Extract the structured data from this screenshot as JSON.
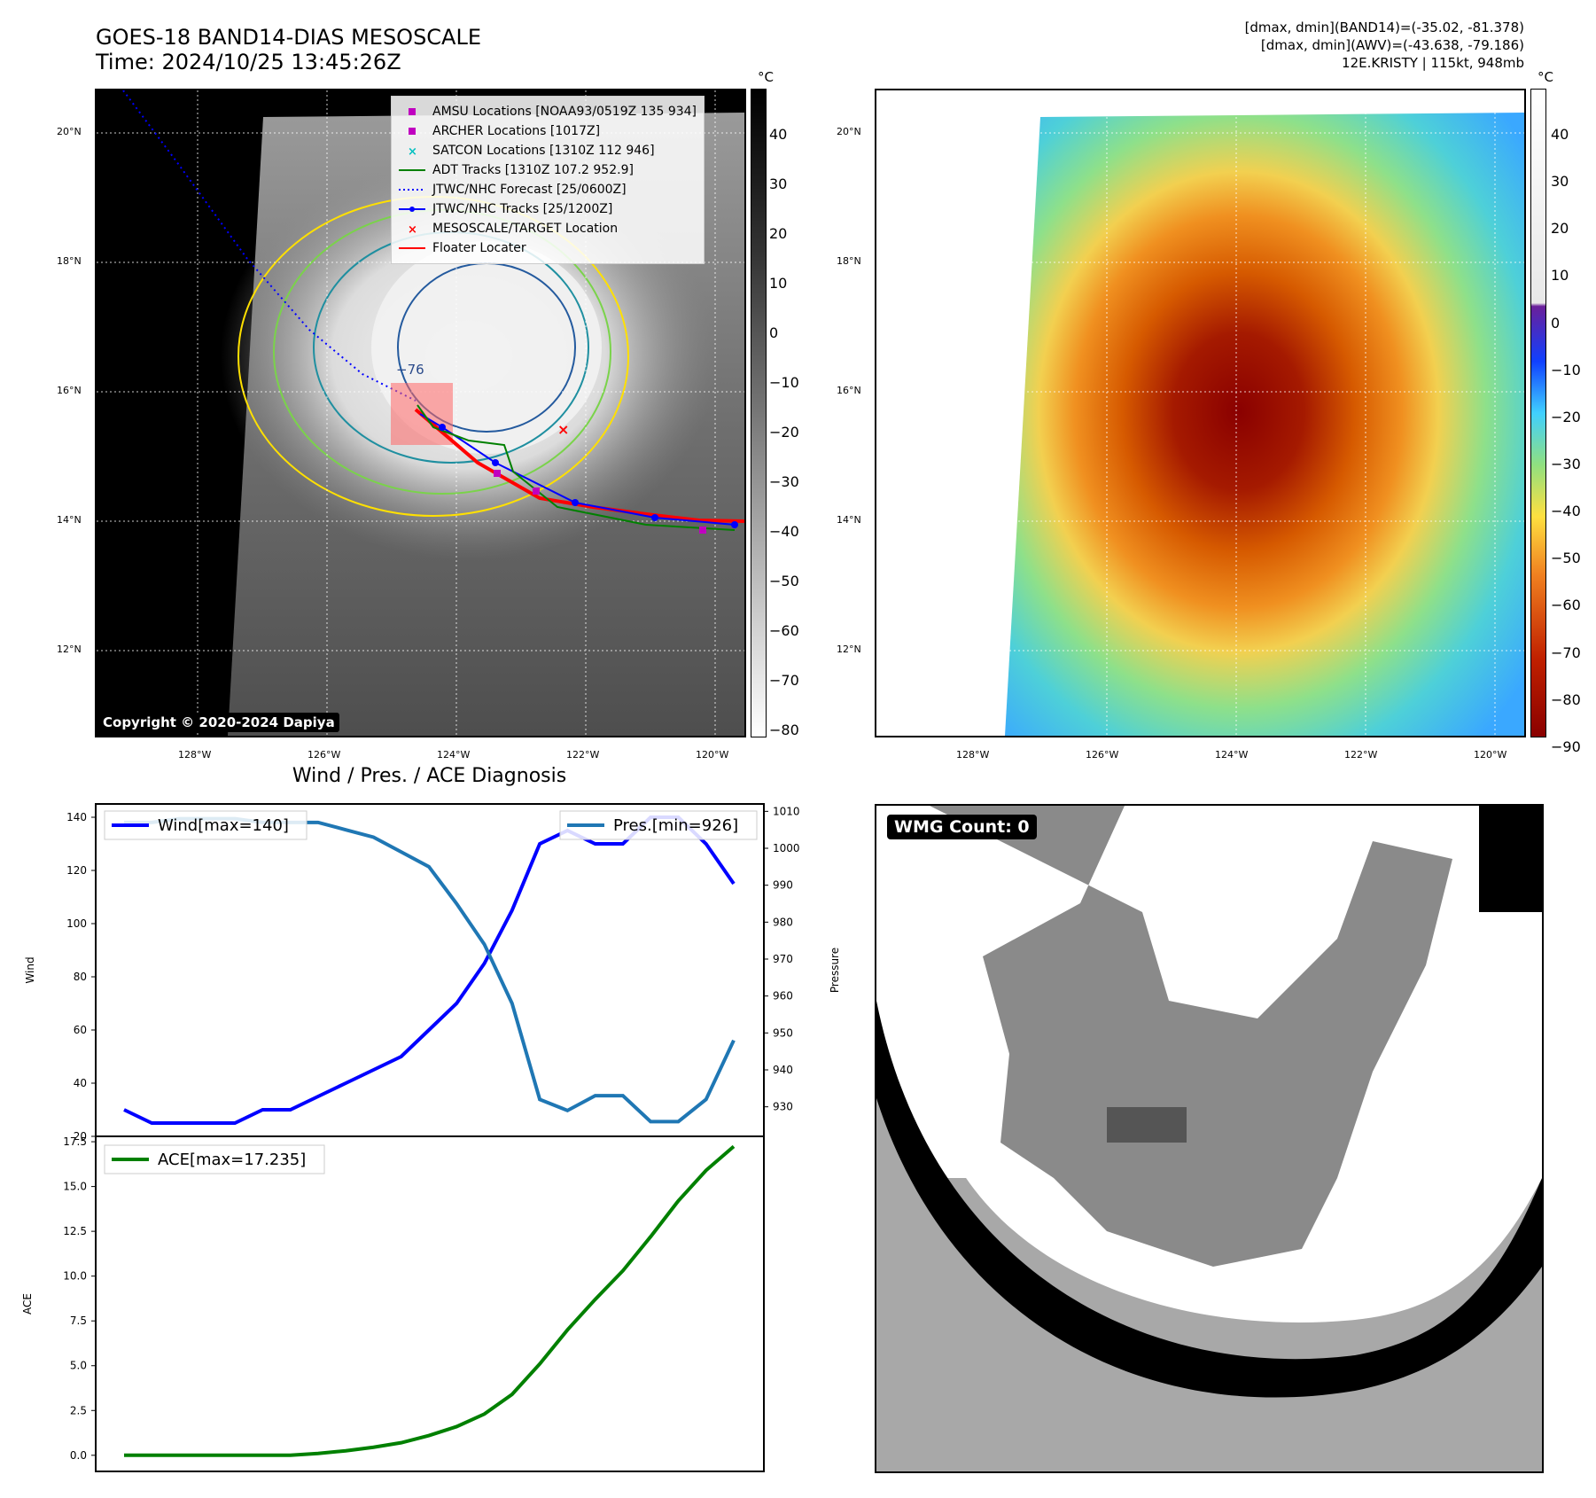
{
  "header": {
    "title_line1": "GOES-18 BAND14-DIAS MESOSCALE",
    "title_line2": "Time: 2024/10/25 13:45:26Z",
    "info_line1": "[dmax, dmin](BAND14)=(-35.02, -81.378)",
    "info_line2": "[dmax, dmin](AWV)=(-43.638, -79.186)",
    "info_line3": "12E.KRISTY | 115kt, 948mb"
  },
  "map_axes": {
    "lat_labels": [
      "20°N",
      "18°N",
      "16°N",
      "14°N",
      "12°N"
    ],
    "lon_labels": [
      "128°W",
      "126°W",
      "124°W",
      "122°W",
      "120°W"
    ]
  },
  "left_map": {
    "contour_label": "−76",
    "copyright": "Copyright © 2020-2024 Dapiya",
    "colorbar_unit": "°C",
    "colorbar_ticks": [
      "40",
      "30",
      "20",
      "10",
      "0",
      "−10",
      "−20",
      "−30",
      "−40",
      "−50",
      "−60",
      "−70",
      "−80"
    ],
    "legend": [
      {
        "label": "AMSU Locations [NOAA93/0519Z 135 934]",
        "symbol": "square",
        "color": "#c000c0"
      },
      {
        "label": "ARCHER Locations [1017Z]",
        "symbol": "square",
        "color": "#c000c0"
      },
      {
        "label": "SATCON Locations [1310Z 112 946]",
        "symbol": "x",
        "color": "#00c0c0"
      },
      {
        "label": "ADT Tracks [1310Z 107.2 952.9]",
        "symbol": "line",
        "color": "#008000"
      },
      {
        "label": "JTWC/NHC Forecast [25/0600Z]",
        "symbol": "dotted",
        "color": "#0000ff"
      },
      {
        "label": "JTWC/NHC Tracks [25/1200Z]",
        "symbol": "dotline",
        "color": "#0000ff"
      },
      {
        "label": "MESOSCALE/TARGET Location",
        "symbol": "x",
        "color": "#ff0000"
      },
      {
        "label": "Floater Locater",
        "symbol": "line",
        "color": "#ff0000"
      }
    ]
  },
  "right_map": {
    "colorbar_unit": "°C",
    "colorbar_ticks": [
      "40",
      "30",
      "20",
      "10",
      "0",
      "−10",
      "−20",
      "−30",
      "−40",
      "−50",
      "−60",
      "−70",
      "−80",
      "−90"
    ]
  },
  "wmg": {
    "label": "WMG Count: 0"
  },
  "chart_data": [
    {
      "type": "line",
      "title": "Wind / Pres. / ACE Diagnosis",
      "x": [
        0,
        1,
        2,
        3,
        4,
        5,
        6,
        7,
        8,
        9,
        10,
        11,
        12,
        13,
        14,
        15,
        16,
        17,
        18,
        19,
        20,
        21,
        22
      ],
      "series": [
        {
          "name": "Wind[max=140]",
          "axis": "left",
          "color": "#0000ff",
          "values": [
            30,
            25,
            25,
            25,
            25,
            30,
            30,
            35,
            40,
            45,
            50,
            60,
            70,
            85,
            105,
            130,
            135,
            130,
            130,
            140,
            140,
            130,
            115
          ]
        },
        {
          "name": "Pres.[min=926]",
          "axis": "right",
          "color": "#1f77b4",
          "values": [
            1007,
            1007,
            1008,
            1008,
            1008,
            1007,
            1007,
            1007,
            1005,
            1003,
            999,
            995,
            985,
            974,
            958,
            932,
            929,
            933,
            933,
            926,
            926,
            932,
            948
          ]
        }
      ],
      "ylabel": "Wind",
      "ylim": [
        20,
        145
      ],
      "yticks": [
        20,
        40,
        60,
        80,
        100,
        120,
        140
      ],
      "y2label": "Pressure",
      "y2lim": [
        922,
        1012
      ],
      "y2ticks": [
        930,
        940,
        950,
        960,
        970,
        980,
        990,
        1000,
        1010
      ],
      "legend_wind": "Wind[max=140]",
      "legend_pres": "Pres.[min=926]"
    },
    {
      "type": "line",
      "title": "",
      "x": [
        0,
        1,
        2,
        3,
        4,
        5,
        6,
        7,
        8,
        9,
        10,
        11,
        12,
        13,
        14,
        15,
        16,
        17,
        18,
        19,
        20,
        21,
        22
      ],
      "series": [
        {
          "name": "ACE[max=17.235]",
          "color": "#008000",
          "values": [
            0,
            0,
            0,
            0,
            0,
            0,
            0,
            0.1,
            0.25,
            0.45,
            0.7,
            1.1,
            1.6,
            2.3,
            3.4,
            5.1,
            7.0,
            8.7,
            10.3,
            12.2,
            14.2,
            15.9,
            17.235
          ]
        }
      ],
      "ylabel": "ACE",
      "ylim": [
        -0.9,
        17.8
      ],
      "yticks": [
        "0.0",
        "2.5",
        "5.0",
        "7.5",
        "10.0",
        "12.5",
        "15.0",
        "17.5"
      ],
      "legend_ace": "ACE[max=17.235]"
    }
  ]
}
